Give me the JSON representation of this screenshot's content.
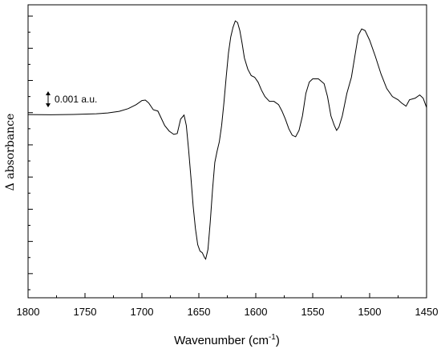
{
  "chart_data": {
    "type": "line",
    "title": "",
    "xlabel_main": "Wavenumber (cm",
    "xlabel_sup": "-1",
    "xlabel_close": ")",
    "ylabel": "Δ absorbance",
    "xlim": [
      1800,
      1450
    ],
    "x_reversed": true,
    "ylim": [
      -0.0115,
      0.0067
    ],
    "y_tick_labels_shown": false,
    "grid": false,
    "x_ticks": [
      1800,
      1750,
      1700,
      1650,
      1600,
      1550,
      1500,
      1450
    ],
    "x_tick_labels": [
      "1800",
      "1750",
      "1700",
      "1650",
      "1600",
      "1550",
      "1500",
      "1450"
    ],
    "scale_bar": {
      "value": 0.001,
      "label": "0.001 a.u."
    },
    "series": [
      {
        "x": [
          1800,
          1780,
          1760,
          1740,
          1730,
          1720,
          1712,
          1705,
          1700,
          1697,
          1694,
          1690,
          1686,
          1683,
          1680,
          1676,
          1672,
          1669,
          1666,
          1663,
          1661,
          1659,
          1657,
          1655,
          1653,
          1651,
          1649,
          1647,
          1645,
          1644,
          1642,
          1640,
          1638,
          1636,
          1634,
          1632,
          1630,
          1628,
          1626,
          1624,
          1622,
          1620,
          1618,
          1616,
          1614,
          1612,
          1610,
          1607,
          1604,
          1601,
          1598,
          1595,
          1592,
          1588,
          1584,
          1580,
          1577,
          1574,
          1571,
          1568,
          1565,
          1562,
          1559,
          1556,
          1553,
          1550,
          1545,
          1540,
          1537,
          1534,
          1531,
          1529,
          1527,
          1524,
          1520,
          1516,
          1513,
          1510,
          1507,
          1504,
          1500,
          1495,
          1490,
          1485,
          1480,
          1475,
          1472,
          1468,
          1465,
          1460,
          1456,
          1453,
          1450
        ],
        "y": [
          -0.00012,
          -0.00013,
          -0.00011,
          -7e-05,
          -2e-05,
          8e-05,
          0.00025,
          0.0005,
          0.00075,
          0.00078,
          0.0006,
          0.00018,
          0.0001,
          -0.00035,
          -0.0008,
          -0.00115,
          -0.00135,
          -0.0013,
          -0.0004,
          -0.00015,
          -0.0008,
          -0.0023,
          -0.004,
          -0.0058,
          -0.0072,
          -0.0082,
          -0.0086,
          -0.0087,
          -0.009,
          -0.0091,
          -0.0085,
          -0.0068,
          -0.0048,
          -0.0031,
          -0.0024,
          -0.0018,
          -0.0008,
          0.0006,
          0.0022,
          0.0037,
          0.0047,
          0.0053,
          0.0057,
          0.0056,
          0.0051,
          0.0043,
          0.0034,
          0.0027,
          0.0023,
          0.0022,
          0.0019,
          0.0014,
          0.001,
          0.0007,
          0.0007,
          0.0005,
          0.0001,
          -0.0004,
          -0.001,
          -0.0014,
          -0.0015,
          -0.0011,
          -0.0002,
          0.0012,
          0.0019,
          0.0021,
          0.0021,
          0.0018,
          0.001,
          -0.0002,
          -0.0008,
          -0.0011,
          -0.0009,
          -0.0002,
          0.0012,
          0.0022,
          0.0035,
          0.0048,
          0.0052,
          0.0051,
          0.0045,
          0.0035,
          0.0024,
          0.0015,
          0.001,
          0.0008,
          0.0006,
          0.0004,
          0.0008,
          0.0009,
          0.0011,
          0.0009,
          0.00032
        ]
      }
    ]
  }
}
